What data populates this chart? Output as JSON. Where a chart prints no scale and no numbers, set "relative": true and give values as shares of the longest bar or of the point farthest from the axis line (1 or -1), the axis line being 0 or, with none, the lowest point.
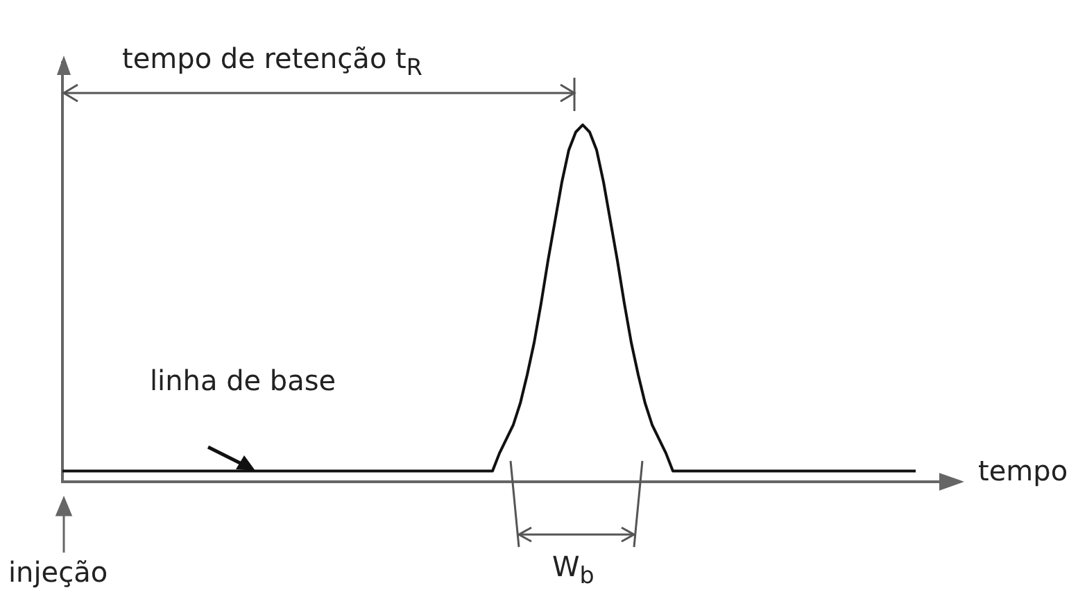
{
  "chart_data": {
    "type": "line",
    "relative": true,
    "xlabel": "tempo",
    "annotations": [
      "tempo de retenção t$_{R}$",
      "linha de base",
      "W$_{b}$",
      "injeção"
    ],
    "categories": [
      null,
      null,
      null,
      null,
      null,
      null,
      null,
      null,
      null,
      null,
      null,
      null,
      null,
      null,
      null,
      null,
      null,
      null,
      null,
      null,
      null,
      null,
      null,
      null,
      null,
      null,
      null,
      null,
      null,
      null,
      null,
      null,
      null,
      null,
      null,
      null,
      null,
      null,
      null,
      null,
      null,
      null,
      null,
      null,
      null,
      null,
      null,
      null,
      null,
      null,
      null,
      null,
      null,
      null,
      null,
      null,
      null,
      null,
      null,
      null,
      null,
      null,
      null,
      null,
      null,
      null,
      null,
      null,
      null,
      null,
      null,
      null,
      null,
      null,
      null,
      null,
      null,
      null,
      null,
      null,
      null,
      null,
      null,
      null,
      null,
      null,
      null,
      null,
      null,
      null,
      null,
      null,
      null,
      null,
      null,
      null,
      null,
      null,
      null,
      null,
      null,
      null,
      null,
      null,
      null,
      null,
      null,
      null,
      null,
      null,
      null,
      null,
      null,
      null,
      null,
      null,
      null,
      null,
      null,
      null,
      null,
      null,
      null,
      null
    ],
    "values": [
      0.03,
      0.03,
      0.03,
      0.03,
      0.03,
      0.03,
      0.03,
      0.03,
      0.03,
      0.03,
      0.03,
      0.03,
      0.03,
      0.03,
      0.03,
      0.03,
      0.03,
      0.03,
      0.03,
      0.03,
      0.03,
      0.03,
      0.03,
      0.03,
      0.03,
      0.03,
      0.03,
      0.03,
      0.03,
      0.03,
      0.03,
      0.03,
      0.03,
      0.03,
      0.03,
      0.03,
      0.03,
      0.03,
      0.03,
      0.03,
      0.03,
      0.03,
      0.03,
      0.03,
      0.03,
      0.03,
      0.03,
      0.03,
      0.03,
      0.03,
      0.03,
      0.03,
      0.03,
      0.03,
      0.03,
      0.03,
      0.03,
      0.03,
      0.03,
      0.03,
      0.03,
      0.03,
      0.03,
      0.08,
      0.12,
      0.16,
      0.22,
      0.3,
      0.39,
      0.5,
      0.62,
      0.73,
      0.84,
      0.93,
      0.98,
      1,
      0.98,
      0.93,
      0.84,
      0.73,
      0.62,
      0.5,
      0.39,
      0.3,
      0.22,
      0.16,
      0.12,
      0.08,
      0.03,
      0.03,
      0.03,
      0.03,
      0.03,
      0.03,
      0.03,
      0.03,
      0.03,
      0.03,
      0.03,
      0.03,
      0.03,
      0.03,
      0.03,
      0.03,
      0.03,
      0.03,
      0.03,
      0.03,
      0.03,
      0.03,
      0.03,
      0.03,
      0.03,
      0.03,
      0.03,
      0.03,
      0.03,
      0.03,
      0.03,
      0.03,
      0.03,
      0.03,
      0.03,
      0.03
    ],
    "color": "#111111",
    "marker": "none",
    "grid": false,
    "legend": false
  }
}
